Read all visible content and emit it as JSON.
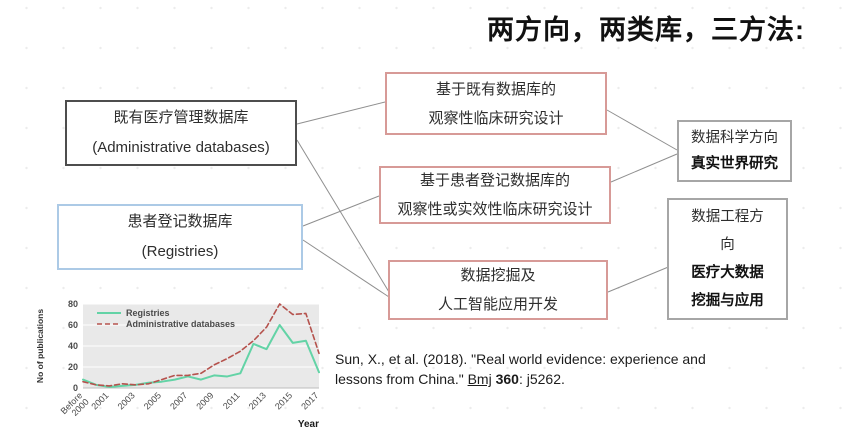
{
  "title": "两方向，两类库，三方法:",
  "flowchart": {
    "left": [
      {
        "line1": "既有医疗管理数据库",
        "line2": "(Administrative databases)"
      },
      {
        "line1": "患者登记数据库",
        "line2": "(Registries)"
      }
    ],
    "middle": [
      {
        "line1": "基于既有数据库的",
        "line2": "观察性临床研究设计"
      },
      {
        "line1": "基于患者登记数据库的",
        "line2": "观察性或实效性临床研究设计"
      },
      {
        "line1": "数据挖掘及",
        "line2": "人工智能应用开发"
      }
    ],
    "right": [
      {
        "line1": "数据科学方向",
        "line2": "真实世界研究"
      },
      {
        "line1": "数据工程方向",
        "line2": "医疗大数据",
        "line3": "挖掘与应用"
      }
    ]
  },
  "citation": {
    "part1": "Sun, X., et al. (2018). \"Real world evidence: experience and lessons from China.\" ",
    "journal": "Bmj",
    "volume": " 360",
    "part2": ": j5262."
  },
  "colors": {
    "mid_box_border": "#d79a97",
    "left_box1_border": "#4d4d4d",
    "left_box2_border": "#accae6",
    "right_box_border": "#a6a6a6",
    "registries_line": "#63d3a6",
    "admin_line": "#b5524d",
    "plot_background": "#e9e9e9"
  },
  "chart_data": {
    "type": "line",
    "title": "",
    "xlabel": "Year",
    "ylabel": "No of publications",
    "ylim": [
      0,
      80
    ],
    "yticks": [
      0,
      20,
      40,
      60,
      80
    ],
    "grid": true,
    "legend_position": "top-left",
    "categories": [
      "Before 2000",
      "2000",
      "2001",
      "2002",
      "2003",
      "2004",
      "2005",
      "2006",
      "2007",
      "2008",
      "2009",
      "2010",
      "2011",
      "2012",
      "2013",
      "2014",
      "2015",
      "2016",
      "2017"
    ],
    "xtick_shown": [
      "Before 2000",
      "2001",
      "2003",
      "2005",
      "2007",
      "2009",
      "2011",
      "2013",
      "2015",
      "2017"
    ],
    "series": [
      {
        "name": "Registries",
        "style": "solid",
        "color": "#63d3a6",
        "values": [
          8,
          3,
          1,
          2,
          3,
          5,
          6,
          8,
          11,
          8,
          12,
          11,
          14,
          42,
          37,
          60,
          43,
          45,
          15
        ]
      },
      {
        "name": "Administrative databases",
        "style": "dashed",
        "color": "#b5524d",
        "values": [
          6,
          3,
          2,
          4,
          3,
          4,
          8,
          12,
          12,
          14,
          22,
          28,
          35,
          45,
          58,
          80,
          70,
          71,
          33
        ]
      }
    ]
  }
}
